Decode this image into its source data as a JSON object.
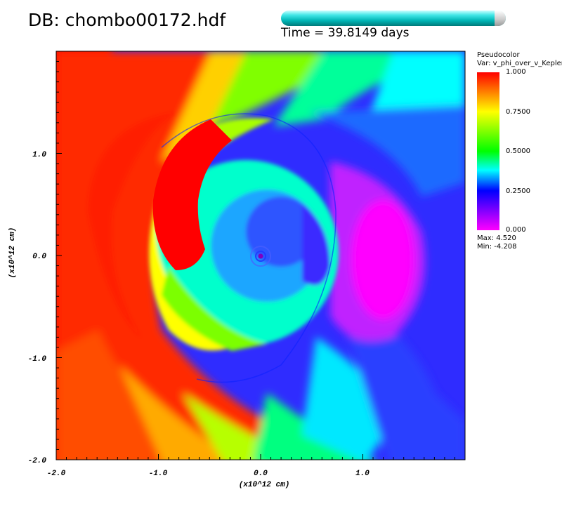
{
  "header": {
    "db_title": "DB: chombo00172.hdf",
    "time_text": "Time = 39.8149 days"
  },
  "legend": {
    "title": "Pseudocolor",
    "var": "Var: v_phi_over_v_Kepler",
    "labels": [
      "1.000",
      "0.7500",
      "0.5000",
      "0.2500",
      "0.000"
    ],
    "max": "Max:  4.520",
    "min": "Min: -4.208"
  },
  "colors": {
    "red": "#ff0000",
    "yellow": "#ffff00",
    "green": "#00ff00",
    "cyan": "#00ffff",
    "blue": "#0000ff",
    "magenta": "#ff00ff"
  },
  "chart_data": {
    "type": "heatmap",
    "variable": "v_phi_over_v_Kepler",
    "xlabel": "(x10^12  cm)",
    "ylabel": "(x10^12  cm)",
    "xlim": [
      -2.0,
      2.0
    ],
    "ylim": [
      -2.0,
      2.0
    ],
    "xticks": [
      "-2.0",
      "-1.0",
      "0.0",
      "1.0"
    ],
    "yticks": [
      "-2.0",
      "-1.0",
      "0.0",
      "1.0"
    ],
    "colorbar_range": [
      0.0,
      1.0
    ],
    "time_progress": 0.95
  }
}
